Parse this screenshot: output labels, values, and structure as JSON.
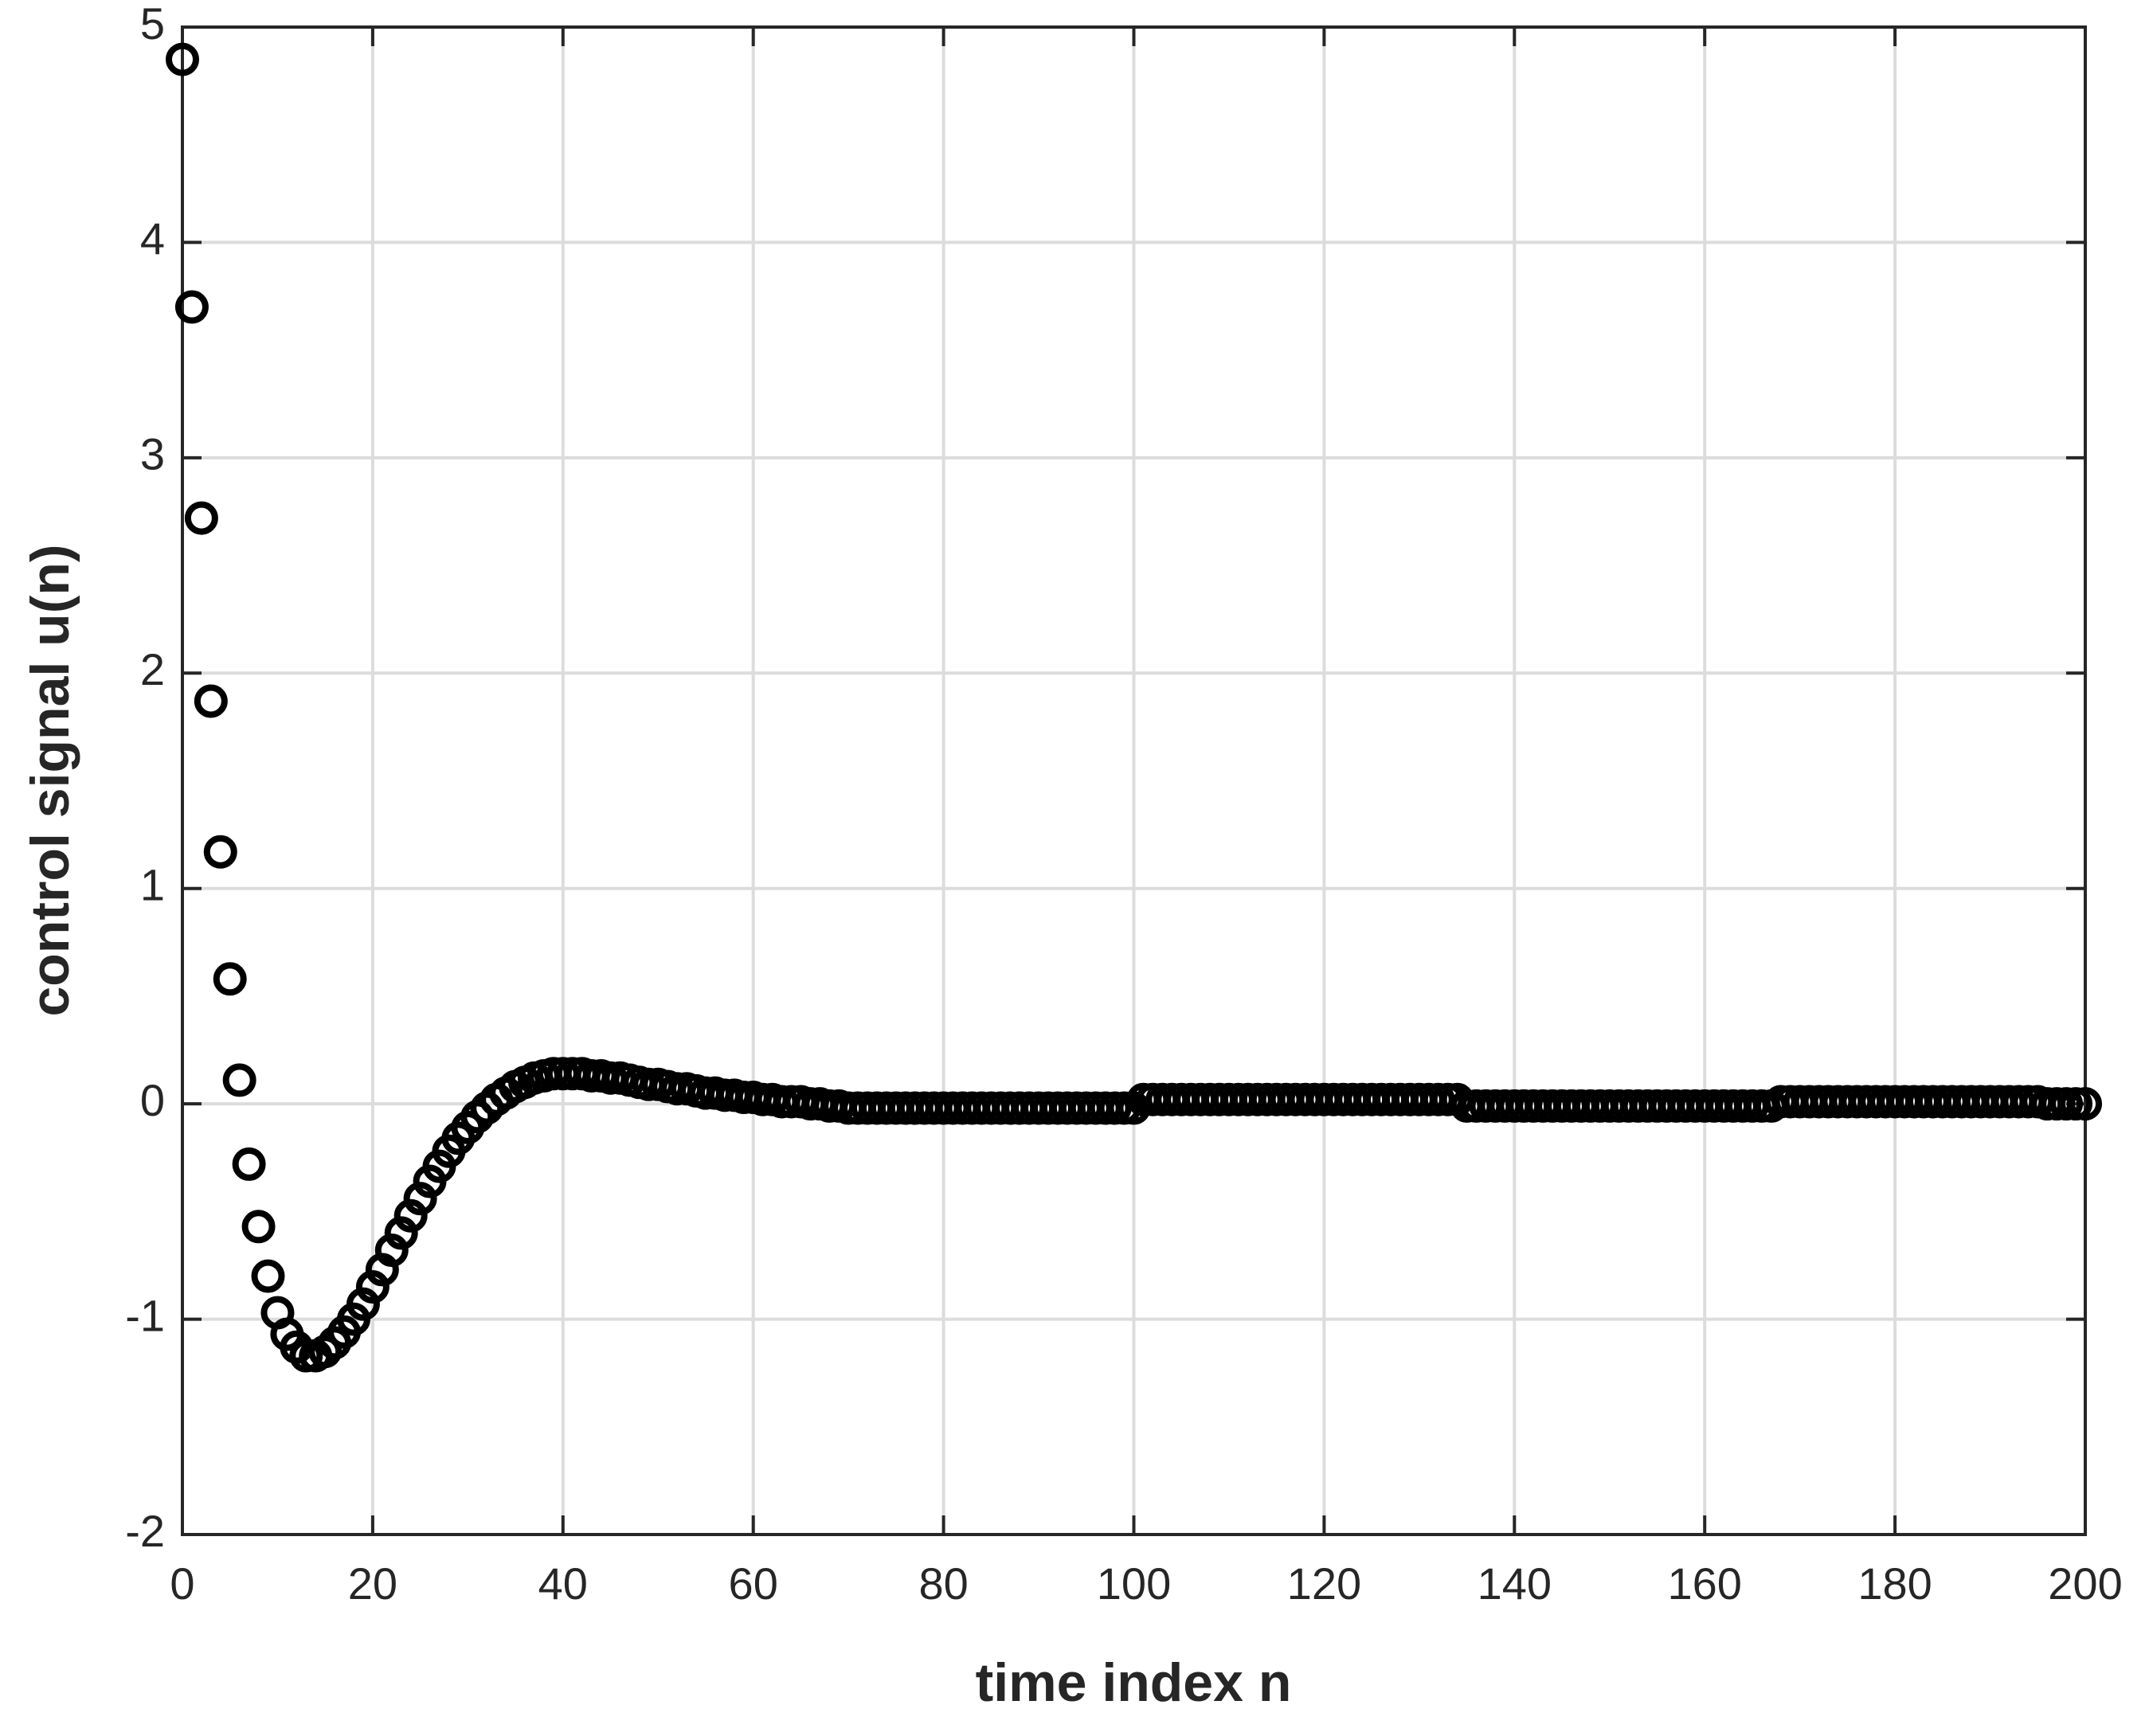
{
  "chart_data": {
    "type": "scatter",
    "xlabel": "time index n",
    "ylabel": "control signal u(n)",
    "xlim": [
      0,
      200
    ],
    "ylim": [
      -2,
      5
    ],
    "xticks": [
      0,
      20,
      40,
      60,
      80,
      100,
      120,
      140,
      160,
      180,
      200
    ],
    "yticks": [
      -2,
      -1,
      0,
      1,
      2,
      3,
      4,
      5
    ],
    "grid": true,
    "color": "#000000",
    "x": [
      0,
      1,
      2,
      3,
      4,
      5,
      6,
      7,
      8,
      9,
      10,
      11,
      12,
      13,
      14,
      15,
      16,
      17,
      18,
      19,
      20,
      21,
      22,
      23,
      24,
      25,
      26,
      27,
      28,
      29,
      30,
      31,
      32,
      33,
      34,
      35,
      36,
      37,
      38,
      39,
      40,
      41,
      42,
      43,
      44,
      45,
      46,
      47,
      48,
      49,
      50,
      51,
      52,
      53,
      54,
      55,
      56,
      57,
      58,
      59,
      60,
      61,
      62,
      63,
      64,
      65,
      66,
      67,
      68,
      69,
      70,
      71,
      72,
      73,
      74,
      75,
      76,
      77,
      78,
      79,
      80,
      81,
      82,
      83,
      84,
      85,
      86,
      87,
      88,
      89,
      90,
      91,
      92,
      93,
      94,
      95,
      96,
      97,
      98,
      99,
      100,
      101,
      102,
      103,
      104,
      105,
      106,
      107,
      108,
      109,
      110,
      111,
      112,
      113,
      114,
      115,
      116,
      117,
      118,
      119,
      120,
      121,
      122,
      123,
      124,
      125,
      126,
      127,
      128,
      129,
      130,
      131,
      132,
      133,
      134,
      135,
      136,
      137,
      138,
      139,
      140,
      141,
      142,
      143,
      144,
      145,
      146,
      147,
      148,
      149,
      150,
      151,
      152,
      153,
      154,
      155,
      156,
      157,
      158,
      159,
      160,
      161,
      162,
      163,
      164,
      165,
      166,
      167,
      168,
      169,
      170,
      171,
      172,
      173,
      174,
      175,
      176,
      177,
      178,
      179,
      180,
      181,
      182,
      183,
      184,
      185,
      186,
      187,
      188,
      189,
      190,
      191,
      192,
      193,
      194,
      195,
      196,
      197,
      198,
      199,
      200
    ],
    "values": [
      4.85,
      3.7,
      2.72,
      1.87,
      1.17,
      0.58,
      0.11,
      -0.28,
      -0.57,
      -0.8,
      -0.97,
      -1.07,
      -1.13,
      -1.17,
      -1.17,
      -1.15,
      -1.11,
      -1.06,
      -1.0,
      -0.93,
      -0.85,
      -0.77,
      -0.68,
      -0.6,
      -0.52,
      -0.44,
      -0.36,
      -0.29,
      -0.22,
      -0.16,
      -0.11,
      -0.06,
      -0.02,
      0.02,
      0.05,
      0.08,
      0.1,
      0.12,
      0.13,
      0.14,
      0.14,
      0.14,
      0.14,
      0.13,
      0.13,
      0.12,
      0.12,
      0.11,
      0.1,
      0.09,
      0.09,
      0.08,
      0.07,
      0.07,
      0.06,
      0.05,
      0.05,
      0.04,
      0.04,
      0.03,
      0.03,
      0.02,
      0.02,
      0.01,
      0.01,
      0.01,
      0,
      0,
      -0.01,
      -0.01,
      -0.02,
      -0.02,
      -0.02,
      -0.02,
      -0.02,
      -0.02,
      -0.02,
      -0.02,
      -0.02,
      -0.02,
      -0.02,
      -0.02,
      -0.02,
      -0.02,
      -0.02,
      -0.02,
      -0.02,
      -0.02,
      -0.02,
      -0.02,
      -0.02,
      -0.02,
      -0.02,
      -0.02,
      -0.02,
      -0.02,
      -0.02,
      -0.02,
      -0.02,
      -0.02,
      -0.02,
      0.02,
      0.02,
      0.02,
      0.02,
      0.02,
      0.02,
      0.02,
      0.02,
      0.02,
      0.02,
      0.02,
      0.02,
      0.02,
      0.02,
      0.02,
      0.02,
      0.02,
      0.02,
      0.02,
      0.02,
      0.02,
      0.02,
      0.02,
      0.02,
      0.02,
      0.02,
      0.02,
      0.02,
      0.02,
      0.02,
      0.02,
      0.02,
      0.02,
      0.02,
      -0.01,
      -0.01,
      -0.01,
      -0.01,
      -0.01,
      -0.01,
      -0.01,
      -0.01,
      -0.01,
      -0.01,
      -0.01,
      -0.01,
      -0.01,
      -0.01,
      -0.01,
      -0.01,
      -0.01,
      -0.01,
      -0.01,
      -0.01,
      -0.01,
      -0.01,
      -0.01,
      -0.01,
      -0.01,
      -0.01,
      -0.01,
      -0.01,
      -0.01,
      -0.01,
      -0.01,
      -0.01,
      -0.01,
      0.01,
      0.01,
      0.01,
      0.01,
      0.01,
      0.01,
      0.01,
      0.01,
      0.01,
      0.01,
      0.01,
      0.01,
      0.01,
      0.01,
      0.01,
      0.01,
      0.01,
      0.01,
      0.01,
      0.01,
      0.01,
      0.01,
      0.01,
      0.01,
      0.01,
      0.01,
      0.01,
      0.01,
      0,
      0,
      0,
      0,
      0
    ]
  }
}
